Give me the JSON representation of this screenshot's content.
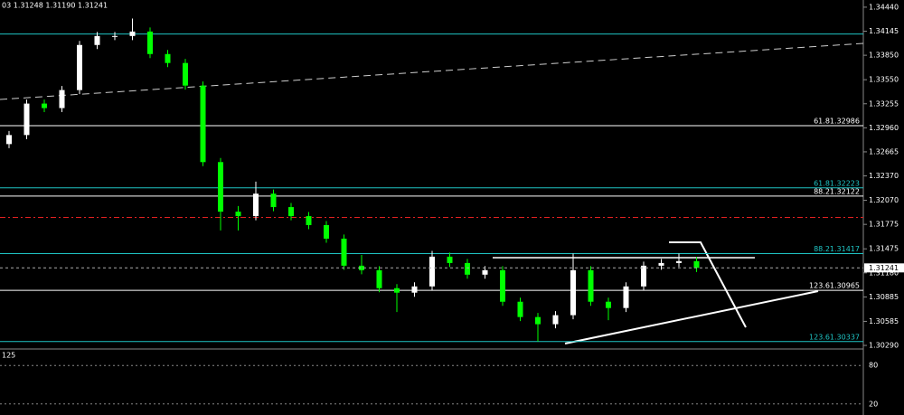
{
  "chart_data": {
    "type": "candlestick",
    "header": "03 1.31248 1.31190 1.31241",
    "up_color": "#ffffff",
    "down_color": "#00ff00",
    "open": [
      1.3276,
      1.32871,
      1.33257,
      1.33202,
      1.33423,
      1.33976,
      1.34086,
      1.34086,
      1.34141,
      1.33865,
      1.33755,
      1.33478,
      1.32539,
      1.31931,
      1.31876,
      1.32152,
      1.31987,
      1.31876,
      1.31766,
      1.316,
      1.31268,
      1.31213,
      1.30992,
      1.30937,
      1.31014,
      1.31379,
      1.31301,
      1.31158,
      1.31213,
      1.30826,
      1.30638,
      1.3055,
      1.30661,
      1.31213,
      1.30826,
      1.30749,
      1.31014,
      1.31268,
      1.31301,
      1.31324
    ],
    "high": [
      1.32921,
      1.33307,
      1.33307,
      1.33473,
      1.34026,
      1.34136,
      1.34136,
      1.343,
      1.34191,
      1.33915,
      1.33805,
      1.33528,
      1.32589,
      1.32,
      1.323,
      1.32202,
      1.32037,
      1.31926,
      1.31816,
      1.3165,
      1.314,
      1.31263,
      1.31042,
      1.31064,
      1.3145,
      1.31429,
      1.31351,
      1.31263,
      1.31263,
      1.30876,
      1.30688,
      1.30711,
      1.31417,
      1.31263,
      1.30876,
      1.31064,
      1.31318,
      1.31351,
      1.31417,
      1.31374
    ],
    "low": [
      1.3271,
      1.32821,
      1.33152,
      1.33152,
      1.33373,
      1.33926,
      1.34036,
      1.34036,
      1.33815,
      1.33705,
      1.33428,
      1.32489,
      1.317,
      1.317,
      1.31826,
      1.31937,
      1.31826,
      1.31716,
      1.3155,
      1.31218,
      1.31163,
      1.30942,
      1.307,
      1.30887,
      1.30964,
      1.31251,
      1.31108,
      1.31108,
      1.30776,
      1.30588,
      1.30337,
      1.305,
      1.30611,
      1.30776,
      1.306,
      1.30699,
      1.30964,
      1.31218,
      1.31251,
      1.3119
    ],
    "close": [
      1.32871,
      1.33257,
      1.33202,
      1.33423,
      1.33976,
      1.34086,
      1.34086,
      1.34141,
      1.33865,
      1.33755,
      1.33478,
      1.32539,
      1.31931,
      1.31876,
      1.32152,
      1.31987,
      1.31876,
      1.31766,
      1.316,
      1.31268,
      1.31213,
      1.30992,
      1.30937,
      1.31014,
      1.31379,
      1.31301,
      1.31158,
      1.31213,
      1.30826,
      1.30638,
      1.3055,
      1.30661,
      1.31213,
      1.30826,
      1.30749,
      1.31014,
      1.31268,
      1.31301,
      1.31324,
      1.31241
    ],
    "ylim": [
      1.30246,
      1.34528
    ],
    "yticks": [
      {
        "value": 1.3444,
        "label": "1.34440"
      },
      {
        "value": 1.34145,
        "label": "1.34145"
      },
      {
        "value": 1.3385,
        "label": "1.33850"
      },
      {
        "value": 1.3355,
        "label": "1.33550"
      },
      {
        "value": 1.33255,
        "label": "1.33255"
      },
      {
        "value": 1.3296,
        "label": "1.32960"
      },
      {
        "value": 1.32665,
        "label": "1.32665"
      },
      {
        "value": 1.3237,
        "label": "1.32370"
      },
      {
        "value": 1.3207,
        "label": "1.32070"
      },
      {
        "value": 1.31775,
        "label": "1.31775"
      },
      {
        "value": 1.31475,
        "label": "1.31475"
      },
      {
        "value": 1.3118,
        "label": "1.31180"
      },
      {
        "value": 1.30885,
        "label": "1.30885"
      },
      {
        "value": 1.30585,
        "label": "1.30585"
      },
      {
        "value": 1.3029,
        "label": "1.30290"
      }
    ],
    "current_price": {
      "value": 1.31241,
      "label": "1.31241"
    },
    "levels": [
      {
        "value": 1.3411,
        "color": "#1fc4c4"
      },
      {
        "value": 1.32986,
        "label": "61.81.32986",
        "color": "#ffffff"
      },
      {
        "value": 1.32223,
        "label": "61.81.32223",
        "color": "#1fc4c4"
      },
      {
        "value": 1.32122,
        "label": "88.21.32122",
        "color": "#ffffff"
      },
      {
        "value": 1.3186,
        "color": "#e02020",
        "dash": true
      },
      {
        "value": 1.31417,
        "label": "88.21.31417",
        "color": "#1fc4c4"
      },
      {
        "value": 1.30965,
        "label": "123.61.30965",
        "color": "#ffffff"
      },
      {
        "value": 1.30337,
        "label": "123.61.30337",
        "color": "#1fc4c4"
      }
    ],
    "oscillator": {
      "label": "125",
      "ylim": [
        0,
        100
      ],
      "yticks": [
        20,
        80
      ]
    }
  }
}
